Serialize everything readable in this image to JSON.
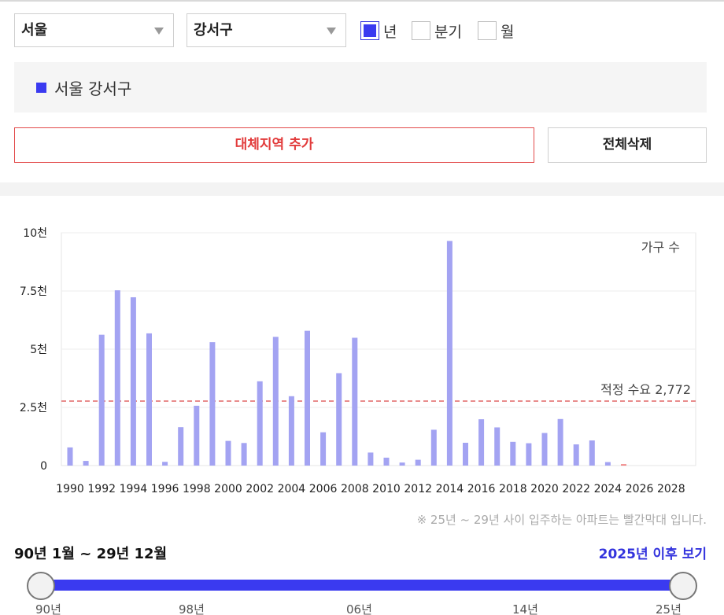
{
  "filters": {
    "city": "서울",
    "district": "강서구",
    "period_options": [
      {
        "label": "년",
        "checked": true
      },
      {
        "label": "분기",
        "checked": false
      },
      {
        "label": "월",
        "checked": false
      }
    ]
  },
  "legend": {
    "label": "서울 강서구",
    "color": "#3a3af0"
  },
  "buttons": {
    "add_region": "대체지역 추가",
    "clear_all": "전체삭제"
  },
  "chart_data": {
    "type": "bar",
    "x": [
      1990,
      1991,
      1992,
      1993,
      1994,
      1995,
      1996,
      1997,
      1998,
      1999,
      2000,
      2001,
      2002,
      2003,
      2004,
      2005,
      2006,
      2007,
      2008,
      2009,
      2010,
      2011,
      2012,
      2013,
      2014,
      2015,
      2016,
      2017,
      2018,
      2019,
      2020,
      2021,
      2022,
      2023,
      2024,
      2025,
      2026,
      2027,
      2028
    ],
    "series": [
      {
        "values": [
          780,
          200,
          5620,
          7530,
          7230,
          5680,
          160,
          1650,
          2570,
          5300,
          1060,
          970,
          3620,
          5530,
          2980,
          5790,
          1430,
          3970,
          5490,
          560,
          340,
          130,
          250,
          1540,
          9650,
          980,
          1990,
          1640,
          1020,
          960,
          1400,
          2000,
          910,
          1080,
          150,
          60,
          0,
          0,
          0
        ]
      }
    ],
    "tick_labels": [
      "1990",
      "1992",
      "1994",
      "1996",
      "1998",
      "2000",
      "2002",
      "2004",
      "2006",
      "2008",
      "2010",
      "2012",
      "2014",
      "2016",
      "2018",
      "2020",
      "2022",
      "2024",
      "2026",
      "2028"
    ],
    "y_ticks": [
      {
        "value": 0,
        "label": "0"
      },
      {
        "value": 2500,
        "label": "2.5천"
      },
      {
        "value": 5000,
        "label": "5천"
      },
      {
        "value": 7500,
        "label": "7.5천"
      },
      {
        "value": 10000,
        "label": "10천"
      }
    ],
    "ylim": [
      0,
      10000
    ],
    "annotation": "가구 수",
    "threshold": {
      "value": 2772,
      "label": "적정 수요 2,772",
      "color": "#e06666"
    },
    "bar_color": "#a3a3f2",
    "future_bar_color": "#f08080",
    "future_from": 2025,
    "grid": true
  },
  "footnote": "※ 25년 ~ 29년 사이 입주하는 아파트는 빨간막대 입니다.",
  "range": {
    "label": "90년 1월 ~ 29년 12월",
    "after_link": "2025년 이후 보기",
    "ticks": [
      "90년",
      "98년",
      "06년",
      "14년",
      "25년"
    ]
  }
}
